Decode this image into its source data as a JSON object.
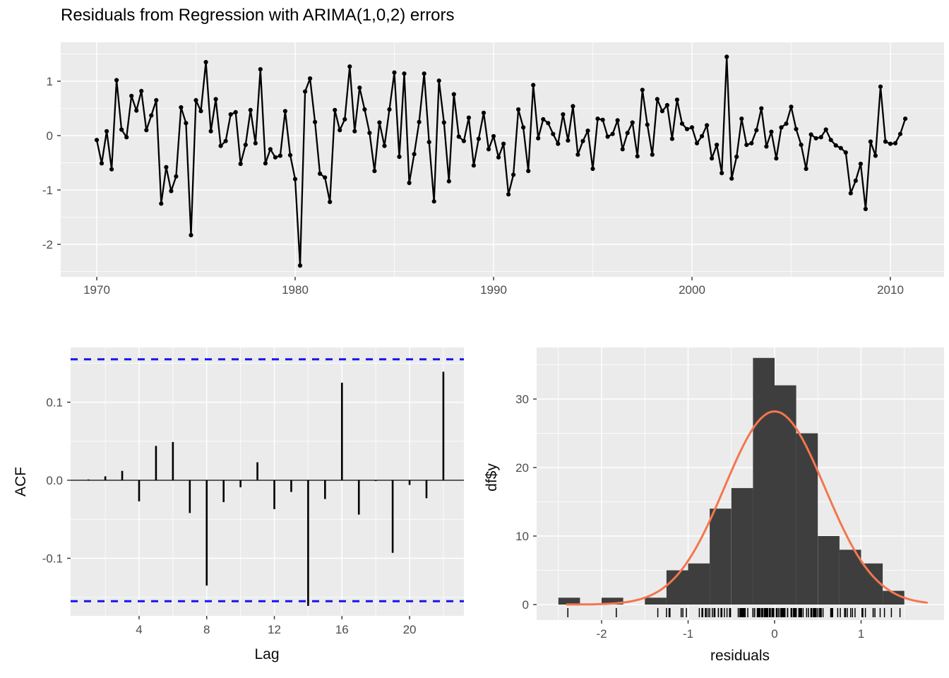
{
  "title": "Residuals from Regression with ARIMA(1,0,2) errors",
  "colors": {
    "panel_background": "#EBEBEB",
    "grid": "#FFFFFF",
    "series": "#000000",
    "tick_text": "#4D4D4D",
    "tick_mark": "#333333",
    "axis_title_text": "#0A0A0A",
    "acf_confidence": "#1515EE",
    "histogram_fill": "#3E3E3E",
    "normal_curve": "#F4764E"
  },
  "chart_data": [
    {
      "id": "residuals_series",
      "type": "line",
      "title": "Residuals from Regression with ARIMA(1,0,2) errors",
      "xlabel": "",
      "ylabel": "",
      "x_start": 1970,
      "x_step": 0.25,
      "xticks": [
        1970,
        1980,
        1990,
        2000,
        2010
      ],
      "yticks": [
        1,
        0,
        -1,
        -2
      ],
      "xlim": [
        1968.2,
        2012.7
      ],
      "ylim": [
        -2.6,
        1.71
      ],
      "x_minor": [
        1975,
        1985,
        1995,
        2005
      ],
      "y_minor": [
        1.5,
        0.5,
        -0.5,
        -1.5,
        -2.5
      ],
      "marker": "point",
      "grid": true,
      "values": [
        -0.08,
        -0.51,
        0.08,
        -0.62,
        1.02,
        0.11,
        -0.03,
        0.73,
        0.46,
        0.82,
        0.1,
        0.37,
        0.65,
        -1.25,
        -0.58,
        -1.02,
        -0.75,
        0.52,
        0.23,
        -1.83,
        0.65,
        0.45,
        1.35,
        0.08,
        0.67,
        -0.19,
        -0.1,
        0.39,
        0.43,
        -0.52,
        -0.17,
        0.47,
        -0.14,
        1.22,
        -0.51,
        -0.25,
        -0.4,
        -0.37,
        0.45,
        -0.36,
        -0.8,
        -2.39,
        0.81,
        1.05,
        0.25,
        -0.7,
        -0.77,
        -1.22,
        0.47,
        0.1,
        0.3,
        1.27,
        0.08,
        0.88,
        0.48,
        0.05,
        -0.65,
        0.24,
        -0.19,
        0.48,
        1.16,
        -0.39,
        1.14,
        -0.87,
        -0.34,
        0.25,
        1.14,
        -0.12,
        -1.21,
        1.01,
        0.24,
        -0.84,
        0.76,
        -0.02,
        -0.1,
        0.33,
        -0.55,
        -0.06,
        0.42,
        -0.25,
        -0.01,
        -0.4,
        -0.15,
        -1.08,
        -0.72,
        0.48,
        0.15,
        -0.65,
        0.93,
        -0.05,
        0.3,
        0.23,
        0.03,
        -0.15,
        0.39,
        -0.09,
        0.54,
        -0.35,
        -0.1,
        0.09,
        -0.61,
        0.31,
        0.29,
        -0.02,
        0.03,
        0.28,
        -0.25,
        0.05,
        0.24,
        -0.38,
        0.84,
        0.2,
        -0.35,
        0.67,
        0.45,
        0.56,
        -0.06,
        0.66,
        0.22,
        0.12,
        0.15,
        -0.14,
        -0.01,
        0.19,
        -0.42,
        -0.17,
        -0.69,
        1.45,
        -0.79,
        -0.39,
        0.31,
        -0.17,
        -0.14,
        0.1,
        0.5,
        -0.2,
        0.07,
        -0.42,
        0.15,
        0.22,
        0.53,
        0.12,
        -0.17,
        -0.61,
        0.02,
        -0.05,
        -0.03,
        0.11,
        -0.08,
        -0.18,
        -0.23,
        -0.31,
        -1.06,
        -0.83,
        -0.52,
        -1.35,
        -0.11,
        -0.37,
        0.9,
        -0.11,
        -0.15,
        -0.14,
        0.03,
        0.31
      ]
    },
    {
      "id": "acf",
      "type": "bar",
      "xlabel": "Lag",
      "ylabel": "ACF",
      "categories": [
        1,
        2,
        3,
        4,
        5,
        6,
        7,
        8,
        9,
        10,
        11,
        12,
        13,
        14,
        15,
        16,
        17,
        18,
        19,
        20,
        21,
        22
      ],
      "values": [
        0.001,
        0.005,
        0.012,
        -0.027,
        0.044,
        0.049,
        -0.042,
        -0.135,
        -0.028,
        -0.009,
        0.023,
        -0.037,
        -0.015,
        -0.161,
        -0.024,
        0.125,
        -0.044,
        -0.001,
        -0.093,
        -0.006,
        -0.023,
        0.139
      ],
      "confidence_bounds": [
        0.155,
        -0.155
      ],
      "xticks": [
        4,
        8,
        12,
        16,
        20
      ],
      "x_minor": [
        2,
        6,
        10,
        14,
        18,
        22
      ],
      "yticks": [
        0.1,
        0.0,
        -0.1
      ],
      "y_minor": [
        0.15,
        0.05,
        -0.05,
        -0.15
      ],
      "xlim": [
        -0.05,
        23.2
      ],
      "ylim": [
        -0.174,
        0.17
      ],
      "grid": true
    },
    {
      "id": "residual_histogram",
      "type": "histogram",
      "xlabel": "residuals",
      "ylabel": "df$y",
      "bin_start": -2.5,
      "bin_width": 0.25,
      "counts": [
        1,
        0,
        1,
        0,
        1,
        5,
        6,
        14,
        17,
        36,
        32,
        25,
        10,
        8,
        6,
        2
      ],
      "normal_curve": {
        "mean": 0,
        "sd": 0.58,
        "n": 164,
        "peak": 28.2,
        "x_range": [
          -2.4,
          1.78
        ]
      },
      "rug_source": "residuals_series",
      "xticks": [
        -2,
        -1,
        0,
        1
      ],
      "x_minor": [
        -2.5,
        -1.5,
        -0.5,
        0.5,
        1.5
      ],
      "yticks": [
        0,
        10,
        20,
        30
      ],
      "y_minor": [
        5,
        15,
        25,
        35
      ],
      "xlim": [
        -2.75,
        1.96
      ],
      "ylim": [
        -1.0,
        37.5
      ],
      "grid": true
    }
  ]
}
